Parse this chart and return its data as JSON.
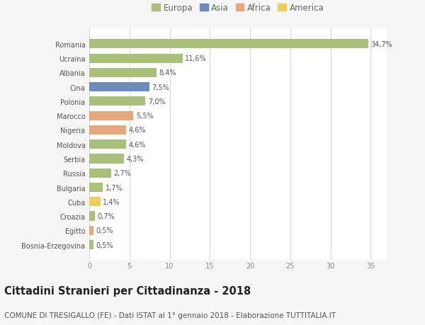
{
  "countries": [
    "Romania",
    "Ucraina",
    "Albania",
    "Cina",
    "Polonia",
    "Marocco",
    "Nigeria",
    "Moldova",
    "Serbia",
    "Russia",
    "Bulgaria",
    "Cuba",
    "Croazia",
    "Egitto",
    "Bosnia-Erzegovina"
  ],
  "values": [
    34.7,
    11.6,
    8.4,
    7.5,
    7.0,
    5.5,
    4.6,
    4.6,
    4.3,
    2.7,
    1.7,
    1.4,
    0.7,
    0.5,
    0.5
  ],
  "labels": [
    "34,7%",
    "11,6%",
    "8,4%",
    "7,5%",
    "7,0%",
    "5,5%",
    "4,6%",
    "4,6%",
    "4,3%",
    "2,7%",
    "1,7%",
    "1,4%",
    "0,7%",
    "0,5%",
    "0,5%"
  ],
  "continents": [
    "Europa",
    "Europa",
    "Europa",
    "Asia",
    "Europa",
    "Africa",
    "Africa",
    "Europa",
    "Europa",
    "Europa",
    "Europa",
    "America",
    "Europa",
    "Africa",
    "Europa"
  ],
  "colors": {
    "Europa": "#a8c07a",
    "Asia": "#6b8cba",
    "Africa": "#e8a87c",
    "America": "#f0cc5a"
  },
  "xlim": [
    0,
    37
  ],
  "xticks": [
    0,
    5,
    10,
    15,
    20,
    25,
    30,
    35
  ],
  "background_color": "#f5f5f5",
  "bar_background": "#ffffff",
  "grid_color": "#d8d8d8",
  "title": "Cittadini Stranieri per Cittadinanza - 2018",
  "subtitle": "COMUNE DI TRESIGALLO (FE) - Dati ISTAT al 1° gennaio 2018 - Elaborazione TUTTITALIA.IT",
  "title_fontsize": 10.5,
  "subtitle_fontsize": 7.5,
  "label_fontsize": 7,
  "tick_fontsize": 7,
  "legend_fontsize": 8.5
}
